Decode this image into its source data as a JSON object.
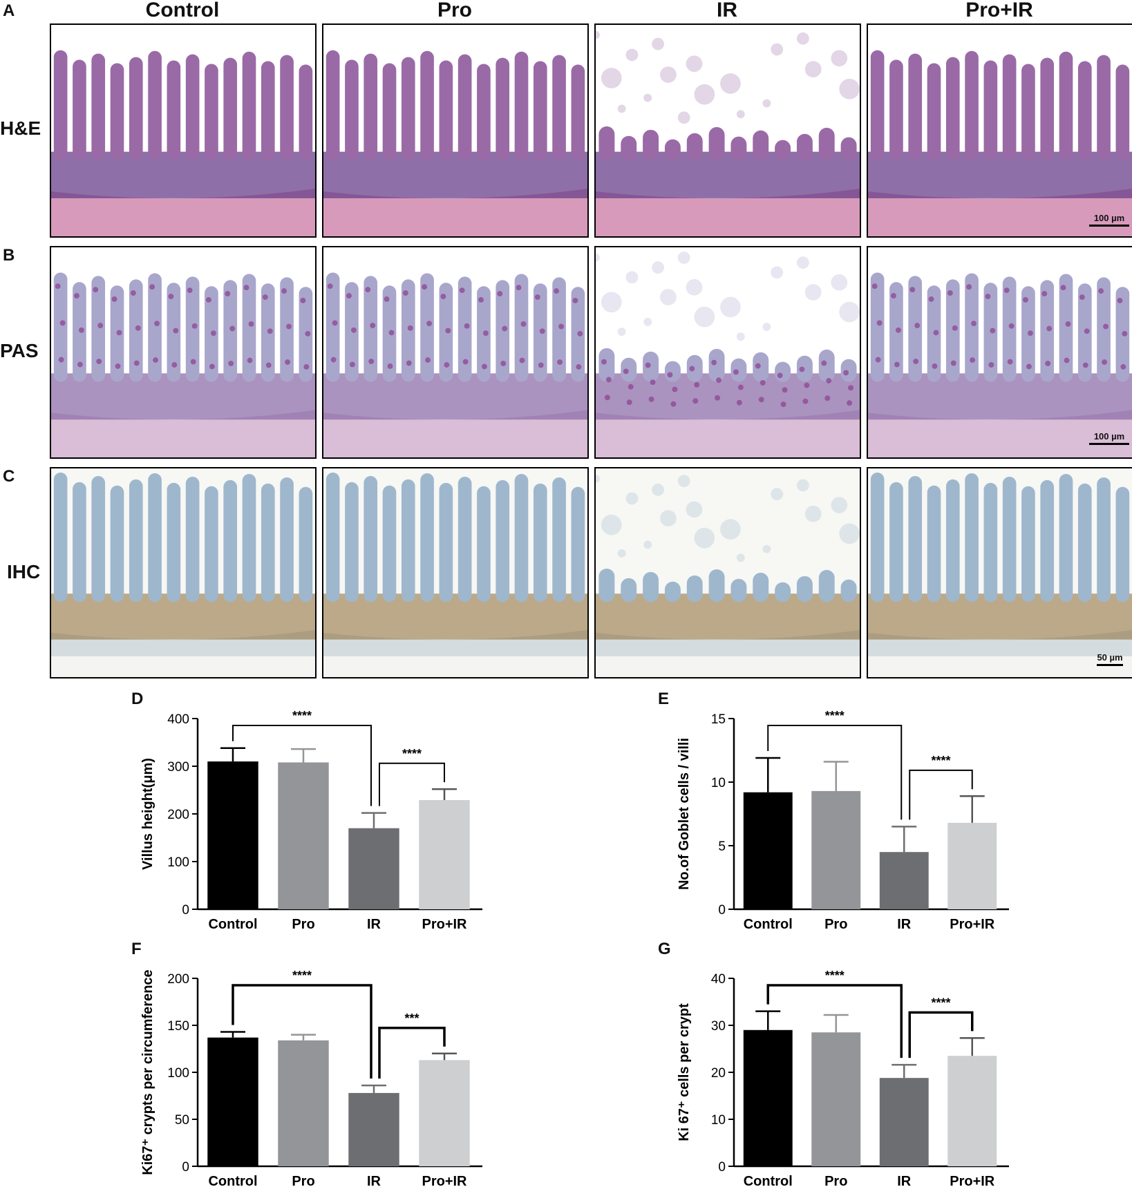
{
  "panel_labels": {
    "a": "A",
    "b": "B",
    "c": "C",
    "d": "D",
    "e": "E",
    "f": "F",
    "g": "G"
  },
  "columns": [
    "Control",
    "Pro",
    "IR",
    "Pro+IR"
  ],
  "rows": [
    {
      "label": "H&E",
      "scale": "100 µm",
      "colors": {
        "bg": "#ffffff",
        "tissue": "#9a6aa6",
        "dark": "#6a3f8a",
        "base": "#d38fb3"
      }
    },
    {
      "label": "PAS",
      "scale": "100 µm",
      "colors": {
        "bg": "#ffffff",
        "tissue": "#a9a6cc",
        "dark": "#8d6fa9",
        "base": "#d6b6d1"
      }
    },
    {
      "label": "IHC",
      "scale": "50 µm",
      "colors": {
        "bg": "#f7f7f4",
        "tissue": "#9fb7cd",
        "dark": "#8a6a32",
        "base": "#cfd8de"
      }
    }
  ],
  "bar_colors": [
    "#000000",
    "#939598",
    "#6d6e71",
    "#cdcfd0"
  ],
  "chart_data": [
    {
      "id": "D",
      "type": "bar",
      "categories": [
        "Control",
        "Pro",
        "IR",
        "Pro+IR"
      ],
      "values": [
        310,
        308,
        170,
        229
      ],
      "errors": [
        28,
        28,
        32,
        23
      ],
      "ylabel": "Villus height(μm)",
      "ylim": [
        0,
        400
      ],
      "yticks": [
        0,
        100,
        200,
        300,
        400
      ],
      "significance": [
        {
          "from": 0,
          "to": 2,
          "label": "****"
        },
        {
          "from": 2,
          "to": 3,
          "label": "****"
        }
      ]
    },
    {
      "id": "E",
      "type": "bar",
      "categories": [
        "Control",
        "Pro",
        "IR",
        "Pro+IR"
      ],
      "values": [
        9.2,
        9.3,
        4.5,
        6.8
      ],
      "errors": [
        2.7,
        2.3,
        2.0,
        2.1
      ],
      "ylabel": "No.of Goblet cells / villi",
      "ylim": [
        0,
        15
      ],
      "yticks": [
        0,
        5,
        10,
        15
      ],
      "significance": [
        {
          "from": 0,
          "to": 2,
          "label": "****"
        },
        {
          "from": 2,
          "to": 3,
          "label": "****"
        }
      ]
    },
    {
      "id": "F",
      "type": "bar",
      "categories": [
        "Control",
        "Pro",
        "IR",
        "Pro+IR"
      ],
      "values": [
        137,
        134,
        78,
        113
      ],
      "errors": [
        6,
        6,
        8,
        7
      ],
      "ylabel": "Ki67⁺ crypts per circumference",
      "ylim": [
        0,
        200
      ],
      "yticks": [
        0,
        50,
        100,
        150,
        200
      ],
      "significance": [
        {
          "from": 0,
          "to": 2,
          "label": "****"
        },
        {
          "from": 2,
          "to": 3,
          "label": "***"
        }
      ]
    },
    {
      "id": "G",
      "type": "bar",
      "categories": [
        "Control",
        "Pro",
        "IR",
        "Pro+IR"
      ],
      "values": [
        29,
        28.5,
        18.8,
        23.5
      ],
      "errors": [
        4,
        3.7,
        2.8,
        3.8
      ],
      "ylabel": "Ki 67⁺ cells per crypt",
      "ylim": [
        0,
        40
      ],
      "yticks": [
        0,
        10,
        20,
        30,
        40
      ],
      "significance": [
        {
          "from": 0,
          "to": 2,
          "label": "****"
        },
        {
          "from": 2,
          "to": 3,
          "label": "****"
        }
      ]
    }
  ]
}
